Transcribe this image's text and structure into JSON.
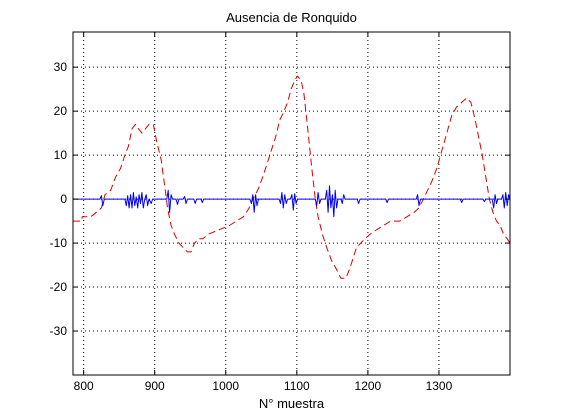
{
  "chart_data": {
    "type": "line",
    "title": "Ausencia de Ronquido",
    "xlabel": "N° muestra",
    "ylabel": "",
    "xlim": [
      785,
      1400
    ],
    "ylim": [
      -40,
      38
    ],
    "xticks": [
      800,
      900,
      1000,
      1100,
      1200,
      1300
    ],
    "yticks": [
      -30,
      -20,
      -10,
      0,
      10,
      20,
      30
    ],
    "grid": true,
    "series": [
      {
        "style": "dashed",
        "color": "#dd0000",
        "points": [
          [
            785,
            -5
          ],
          [
            797,
            -5
          ],
          [
            798,
            -4
          ],
          [
            810,
            -4
          ],
          [
            818,
            -3
          ],
          [
            825,
            -2
          ],
          [
            830,
            1
          ],
          [
            838,
            2
          ],
          [
            845,
            5
          ],
          [
            852,
            7
          ],
          [
            858,
            10
          ],
          [
            863,
            12
          ],
          [
            868,
            16
          ],
          [
            873,
            17
          ],
          [
            877,
            16
          ],
          [
            882,
            15
          ],
          [
            887,
            16
          ],
          [
            892,
            17
          ],
          [
            898,
            17
          ],
          [
            903,
            13
          ],
          [
            909,
            9
          ],
          [
            914,
            3
          ],
          [
            918,
            -2
          ],
          [
            923,
            -6
          ],
          [
            928,
            -8
          ],
          [
            934,
            -10
          ],
          [
            940,
            -11
          ],
          [
            946,
            -12
          ],
          [
            951,
            -12
          ],
          [
            956,
            -10
          ],
          [
            962,
            -9
          ],
          [
            968,
            -9
          ],
          [
            975,
            -8
          ],
          [
            990,
            -7
          ],
          [
            1005,
            -6
          ],
          [
            1015,
            -5
          ],
          [
            1025,
            -4
          ],
          [
            1033,
            -2
          ],
          [
            1038,
            0
          ],
          [
            1045,
            2
          ],
          [
            1052,
            5
          ],
          [
            1058,
            8
          ],
          [
            1064,
            11
          ],
          [
            1070,
            14
          ],
          [
            1076,
            18
          ],
          [
            1082,
            20
          ],
          [
            1087,
            22
          ],
          [
            1092,
            25
          ],
          [
            1097,
            27
          ],
          [
            1101,
            28
          ],
          [
            1106,
            27
          ],
          [
            1110,
            24
          ],
          [
            1116,
            15
          ],
          [
            1121,
            7
          ],
          [
            1126,
            0
          ],
          [
            1130,
            -4
          ],
          [
            1136,
            -8
          ],
          [
            1142,
            -11
          ],
          [
            1149,
            -14
          ],
          [
            1156,
            -16
          ],
          [
            1162,
            -18
          ],
          [
            1169,
            -18
          ],
          [
            1174,
            -16
          ],
          [
            1178,
            -14
          ],
          [
            1184,
            -11
          ],
          [
            1190,
            -10
          ],
          [
            1196,
            -9
          ],
          [
            1203,
            -8
          ],
          [
            1212,
            -7
          ],
          [
            1222,
            -6
          ],
          [
            1232,
            -5
          ],
          [
            1245,
            -5
          ],
          [
            1255,
            -4
          ],
          [
            1265,
            -3
          ],
          [
            1272,
            -2
          ],
          [
            1278,
            0
          ],
          [
            1284,
            2
          ],
          [
            1290,
            4
          ],
          [
            1297,
            7
          ],
          [
            1304,
            11
          ],
          [
            1311,
            15
          ],
          [
            1318,
            19
          ],
          [
            1325,
            21
          ],
          [
            1332,
            22
          ],
          [
            1339,
            23
          ],
          [
            1345,
            22
          ],
          [
            1351,
            18
          ],
          [
            1356,
            14
          ],
          [
            1361,
            10
          ],
          [
            1366,
            5
          ],
          [
            1371,
            0
          ],
          [
            1376,
            -3
          ],
          [
            1381,
            -5
          ],
          [
            1386,
            -6
          ],
          [
            1391,
            -8
          ],
          [
            1396,
            -9
          ],
          [
            1400,
            -10
          ]
        ]
      },
      {
        "style": "solid",
        "color": "#0000ee",
        "points": [
          [
            785,
            0
          ],
          [
            823,
            0
          ],
          [
            825,
            0.8
          ],
          [
            827,
            -1.5
          ],
          [
            829,
            0
          ],
          [
            858,
            0
          ],
          [
            860,
            -1.5
          ],
          [
            862,
            0.8
          ],
          [
            864,
            -2
          ],
          [
            866,
            1
          ],
          [
            868,
            -2
          ],
          [
            870,
            1.5
          ],
          [
            872,
            -1.5
          ],
          [
            874,
            0.5
          ],
          [
            876,
            -2
          ],
          [
            878,
            1
          ],
          [
            880,
            -1
          ],
          [
            882,
            1.5
          ],
          [
            884,
            -2
          ],
          [
            886,
            0
          ],
          [
            888,
            1
          ],
          [
            890,
            -1.5
          ],
          [
            892,
            0
          ],
          [
            895,
            -1
          ],
          [
            897,
            0
          ],
          [
            917,
            0
          ],
          [
            919,
            2
          ],
          [
            921,
            -3
          ],
          [
            923,
            1
          ],
          [
            925,
            0
          ],
          [
            930,
            0
          ],
          [
            932,
            -1.2
          ],
          [
            934,
            0
          ],
          [
            940,
            0
          ],
          [
            942,
            0.6
          ],
          [
            944,
            -1
          ],
          [
            946,
            0
          ],
          [
            955,
            0
          ],
          [
            957,
            -1
          ],
          [
            959,
            0
          ],
          [
            965,
            0
          ],
          [
            967,
            -0.8
          ],
          [
            969,
            0
          ],
          [
            1034,
            0
          ],
          [
            1036,
            -1
          ],
          [
            1038,
            1
          ],
          [
            1040,
            -3
          ],
          [
            1042,
            1
          ],
          [
            1044,
            -1.5
          ],
          [
            1046,
            0
          ],
          [
            1075,
            0
          ],
          [
            1077,
            -1
          ],
          [
            1079,
            1.5
          ],
          [
            1081,
            -2
          ],
          [
            1083,
            1
          ],
          [
            1085,
            -1
          ],
          [
            1087,
            0
          ],
          [
            1091,
            0
          ],
          [
            1093,
            1
          ],
          [
            1095,
            -2.5
          ],
          [
            1097,
            1.2
          ],
          [
            1099,
            -1
          ],
          [
            1101,
            0
          ],
          [
            1126,
            0
          ],
          [
            1128,
            -1.5
          ],
          [
            1130,
            1.5
          ],
          [
            1132,
            -1
          ],
          [
            1134,
            0
          ],
          [
            1140,
            0
          ],
          [
            1142,
            2
          ],
          [
            1144,
            -3
          ],
          [
            1146,
            3
          ],
          [
            1148,
            -2
          ],
          [
            1150,
            1
          ],
          [
            1152,
            -4
          ],
          [
            1154,
            2
          ],
          [
            1156,
            -2
          ],
          [
            1158,
            0
          ],
          [
            1162,
            0
          ],
          [
            1164,
            -1
          ],
          [
            1166,
            1
          ],
          [
            1168,
            0
          ],
          [
            1185,
            0
          ],
          [
            1187,
            -1
          ],
          [
            1189,
            0
          ],
          [
            1225,
            0
          ],
          [
            1227,
            -0.8
          ],
          [
            1229,
            0
          ],
          [
            1268,
            0
          ],
          [
            1270,
            1
          ],
          [
            1272,
            -1.5
          ],
          [
            1274,
            0
          ],
          [
            1330,
            0
          ],
          [
            1332,
            -0.8
          ],
          [
            1334,
            0
          ],
          [
            1362,
            0
          ],
          [
            1364,
            -0.6
          ],
          [
            1366,
            0
          ],
          [
            1375,
            0
          ],
          [
            1377,
            -2
          ],
          [
            1379,
            1
          ],
          [
            1381,
            -1
          ],
          [
            1383,
            0
          ],
          [
            1388,
            0
          ],
          [
            1390,
            1
          ],
          [
            1392,
            -2
          ],
          [
            1394,
            1.5
          ],
          [
            1396,
            -1.5
          ],
          [
            1398,
            1
          ],
          [
            1400,
            0
          ]
        ]
      }
    ]
  }
}
